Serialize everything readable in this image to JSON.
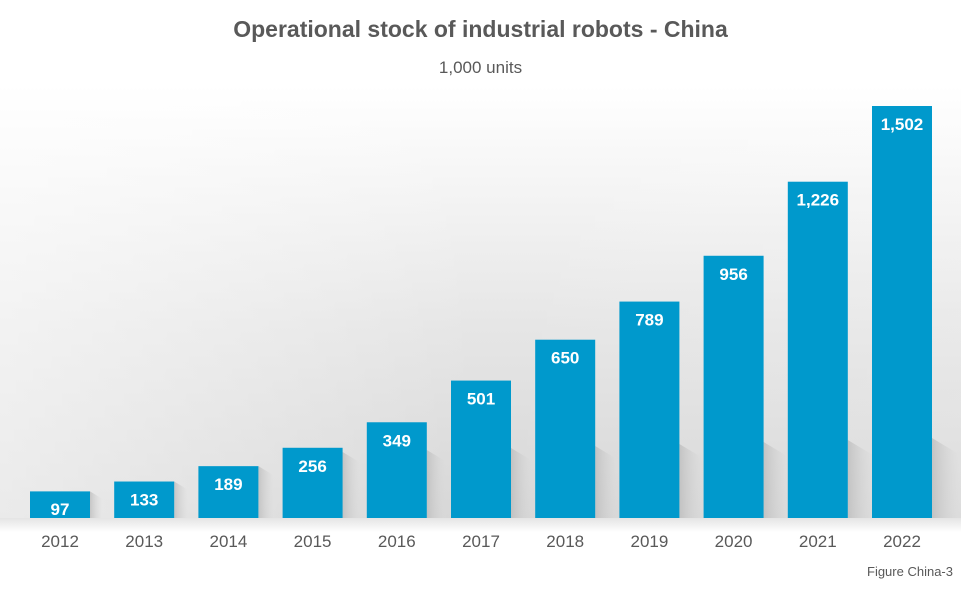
{
  "chart_data": {
    "type": "bar",
    "title": "Operational stock of industrial robots - China",
    "subtitle": "1,000 units",
    "categories": [
      "2012",
      "2013",
      "2014",
      "2015",
      "2016",
      "2017",
      "2018",
      "2019",
      "2020",
      "2021",
      "2022"
    ],
    "values": [
      97,
      133,
      189,
      256,
      349,
      501,
      650,
      789,
      956,
      1226,
      1502
    ],
    "value_labels": [
      "97",
      "133",
      "189",
      "256",
      "349",
      "501",
      "650",
      "789",
      "956",
      "1,226",
      "1,502"
    ],
    "xlabel": "",
    "ylabel": "",
    "ylim": [
      0,
      1502
    ],
    "grid": false,
    "legend": "none",
    "colors": {
      "bar": "#0099CC",
      "text": "#595959",
      "bar_label": "#FFFFFF",
      "backdrop_top": "#FFFFFF",
      "backdrop_bottom": "#DCDCDC"
    }
  },
  "footnote": "Figure China-3"
}
